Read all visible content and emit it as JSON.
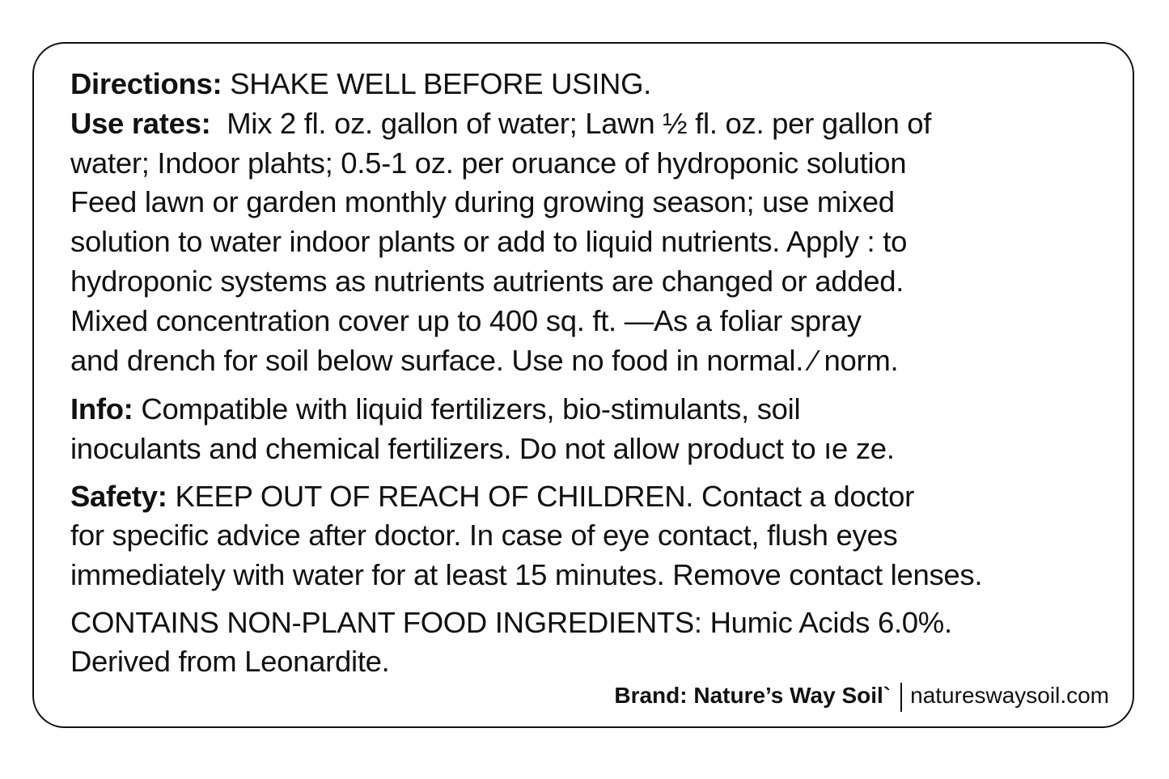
{
  "directions": {
    "label": "Directions:",
    "text": "SHAKE WELL BEFORE USING."
  },
  "use_rates": {
    "label": "Use rates:",
    "lines": [
      "Mix 2 fl. oz. gallon of water; Lawn ½ fl. oz. per gallon of",
      "water; Indoor plahts; 0.5-1 oz. per oruance of hydroponic solution",
      "Feed lawn or garden monthly during growing season; use mixed",
      "solution to water indoor plants or add to liquid nutrients. Apply : to",
      "hydroponic systems as nutrients autrients are changed or added.",
      "Mixed concentration cover up to  400 sq. ft. —As a foliar spray",
      "and drench for soil below surface. Use no food in normal. ⁄ norm."
    ]
  },
  "info": {
    "label": "Info:",
    "lines": [
      "Compatible with liquid fertilizers, bio-stimulants, soil",
      "inoculants and chemical fertilizers. Do not allow product to ıe ze."
    ]
  },
  "safety": {
    "label": "Safety:",
    "lines": [
      "KEEP OUT OF REACH OF CHILDREN. Contact a doctor",
      "for specific advice after doctor. In case of eye contact, flush eyes",
      "immediately with water for at least 15 minutes. Remove contact lenses."
    ]
  },
  "ingredients": {
    "lines": [
      "CONTAINS NON-PLANT FOOD INGREDIENTS: Humic Acids 6.0%.",
      "Derived from Leonardite."
    ]
  },
  "footer": {
    "brand": "Brand: Nature’s Way Soil`",
    "website": "natureswaysoil.com"
  }
}
